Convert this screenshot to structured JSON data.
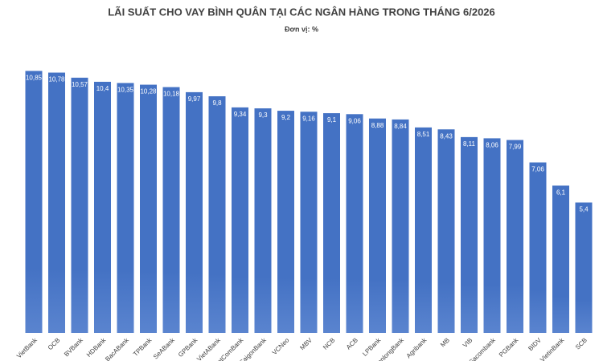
{
  "chart_data": {
    "type": "bar",
    "title": "LÃI SUẤT CHO VAY BÌNH QUÂN TẠI CÁC NGÂN HÀNG TRONG THÁNG 6/2026",
    "subtitle": "Đơn vị: %",
    "color": "#4472c4",
    "categories": [
      "VietBank",
      "OCB",
      "BVBank",
      "HDBank",
      "BacABank",
      "TPBank",
      "SeABank",
      "GPBank",
      "VietABank",
      "VietComBank",
      "SaigonBank",
      "VCNeo",
      "MBV",
      "NCB",
      "ACB",
      "LPBank",
      "KienlongBank",
      "Agribank",
      "MB",
      "VIB",
      "Sacombank",
      "PGBank",
      "BIDV",
      "VietinBank",
      "SCB"
    ],
    "values": [
      10.85,
      10.78,
      10.57,
      10.4,
      10.35,
      10.28,
      10.18,
      9.97,
      9.8,
      9.34,
      9.3,
      9.2,
      9.16,
      9.1,
      9.06,
      8.88,
      8.84,
      8.51,
      8.43,
      8.11,
      8.06,
      7.99,
      7.06,
      6.1,
      5.4
    ],
    "value_labels": [
      "10,85",
      "10,78",
      "10,57",
      "10,4",
      "10,35",
      "10,28",
      "10,18",
      "9,97",
      "9,8",
      "9,34",
      "9,3",
      "9,2",
      "9,16",
      "9,1",
      "9,06",
      "8,88",
      "8,84",
      "8,51",
      "8,43",
      "8,11",
      "8,06",
      "7,99",
      "7,06",
      "6,1",
      "5,4"
    ]
  }
}
